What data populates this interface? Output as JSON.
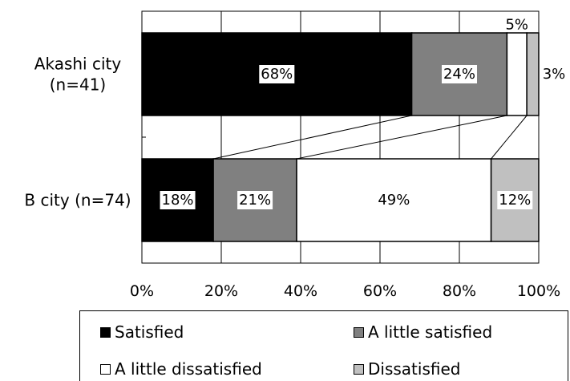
{
  "chart_data": {
    "type": "bar",
    "orientation": "horizontal",
    "stacked": true,
    "normalized": true,
    "categories": [
      "Akashi city\n(n=41)",
      "B city (n=74)"
    ],
    "series": [
      {
        "name": "Satisfied",
        "values": [
          68,
          18
        ],
        "color": "#000000"
      },
      {
        "name": "A little satisfied",
        "values": [
          24,
          21
        ],
        "color": "#808080"
      },
      {
        "name": "A little dissatisfied",
        "values": [
          5,
          49
        ],
        "color": "#ffffff"
      },
      {
        "name": "Dissatisfied",
        "values": [
          3,
          12
        ],
        "color": "#c0c0c0"
      }
    ],
    "data_labels": [
      [
        "68%",
        "24%",
        "5%",
        "3%"
      ],
      [
        "18%",
        "21%",
        "49%",
        "12%"
      ]
    ],
    "x_ticks": [
      "0%",
      "20%",
      "40%",
      "60%",
      "80%",
      "100%"
    ],
    "xlim": [
      0,
      100
    ],
    "grid": true,
    "series_lines": true,
    "legend_position": "bottom"
  }
}
